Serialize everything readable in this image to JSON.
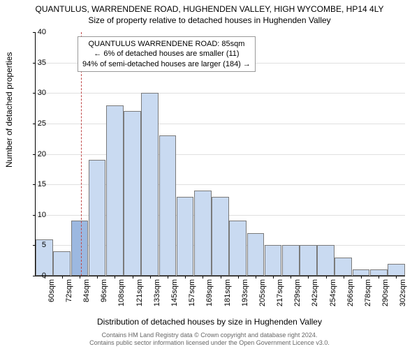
{
  "title_main": "QUANTULUS, WARRENDENE ROAD, HUGHENDEN VALLEY, HIGH WYCOMBE, HP14 4LY",
  "title_sub": "Size of property relative to detached houses in Hughenden Valley",
  "y_label": "Number of detached properties",
  "x_label": "Distribution of detached houses by size in Hughenden Valley",
  "copyright_1": "Contains HM Land Registry data © Crown copyright and database right 2024.",
  "copyright_2": "Contains public sector information licensed under the Open Government Licence v3.0.",
  "chart": {
    "type": "histogram",
    "ylim": [
      0,
      40
    ],
    "ytick_step": 5,
    "background_color": "#ffffff",
    "grid_color": "#e0e0e0",
    "bar_fill": "#c9daf1",
    "bar_border": "#7a7a7a",
    "highlight_fill": "#9cb8e0",
    "refline_color": "#c04848",
    "categories": [
      "60sqm",
      "72sqm",
      "84sqm",
      "96sqm",
      "108sqm",
      "121sqm",
      "133sqm",
      "145sqm",
      "157sqm",
      "169sqm",
      "181sqm",
      "193sqm",
      "205sqm",
      "217sqm",
      "229sqm",
      "242sqm",
      "254sqm",
      "266sqm",
      "278sqm",
      "290sqm",
      "302sqm"
    ],
    "values": [
      6,
      4,
      9,
      19,
      28,
      27,
      30,
      23,
      13,
      14,
      13,
      9,
      7,
      5,
      5,
      5,
      5,
      3,
      1,
      1,
      2
    ],
    "highlight_index": 2,
    "ref_position": 2.08,
    "annotation": {
      "line1": "QUANTULUS WARRENDENE ROAD: 85sqm",
      "line2": "← 6% of detached houses are smaller (11)",
      "line3": "94% of semi-detached houses are larger (184) →"
    },
    "label_fontsize": 12,
    "tick_fontsize": 11
  }
}
